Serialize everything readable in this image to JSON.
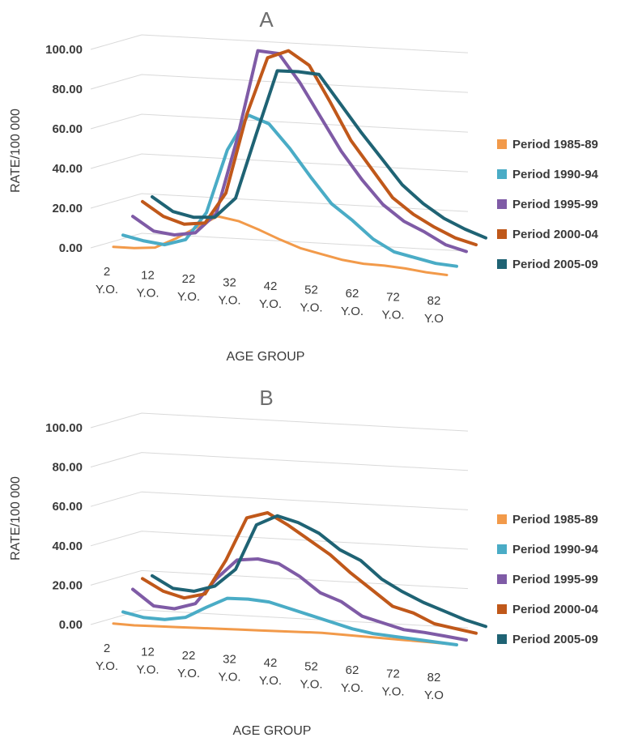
{
  "chart_data": [
    {
      "type": "line",
      "title": "A",
      "xlabel": "AGE GROUP",
      "ylabel": "RATE/100 000",
      "ylim": [
        0,
        100
      ],
      "yticks": [
        "0.00",
        "20.00",
        "40.00",
        "60.00",
        "80.00",
        "100.00"
      ],
      "categories": [
        {
          "line1": "2",
          "line2": "Y.O."
        },
        {
          "line1": "12",
          "line2": "Y.O."
        },
        {
          "line1": "22",
          "line2": "Y.O."
        },
        {
          "line1": "32",
          "line2": "Y.O."
        },
        {
          "line1": "42",
          "line2": "Y.O."
        },
        {
          "line1": "52",
          "line2": "Y.O."
        },
        {
          "line1": "62",
          "line2": "Y.O."
        },
        {
          "line1": "72",
          "line2": "Y.O."
        },
        {
          "line1": "82",
          "line2": "Y.O"
        }
      ],
      "x": [
        2,
        7,
        12,
        17,
        22,
        27,
        32,
        37,
        42,
        47,
        52,
        57,
        62,
        67,
        72,
        77,
        82
      ],
      "grid": true,
      "legend_position": "right",
      "series": [
        {
          "name": "Period 1985-89",
          "color": "#f29a4a",
          "values": [
            0.5,
            0.3,
            1.0,
            6.0,
            12.0,
            18.0,
            16.0,
            12.0,
            7.5,
            3.5,
            1.0,
            -1.5,
            -3.0,
            -3.5,
            -4.5,
            -6.0,
            -7.0
          ]
        },
        {
          "name": "Period 1990-94",
          "color": "#4aacc6",
          "values": [
            5.0,
            2.5,
            1.0,
            4.0,
            18.0,
            50.0,
            68.0,
            64.0,
            52.0,
            38.0,
            25.0,
            17.0,
            8.0,
            2.0,
            -0.5,
            -3.0,
            -4.0
          ]
        },
        {
          "name": "Period 1995-99",
          "color": "#7f5ba6",
          "values": [
            13.0,
            6.0,
            4.5,
            6.0,
            16.0,
            54.0,
            99.0,
            98.0,
            84.0,
            67.0,
            50.0,
            36.0,
            24.0,
            16.0,
            11.0,
            5.0,
            2.0
          ]
        },
        {
          "name": "Period 2000-04",
          "color": "#c0581a",
          "values": [
            19.0,
            12.0,
            8.5,
            9.5,
            25.0,
            65.0,
            94.0,
            98.0,
            91.0,
            73.0,
            54.0,
            40.0,
            26.0,
            18.0,
            12.0,
            7.0,
            4.0
          ]
        },
        {
          "name": "Period 2005-09",
          "color": "#1f6374",
          "values": [
            20.0,
            13.0,
            10.5,
            11.0,
            21.0,
            54.0,
            86.0,
            86.0,
            85.0,
            71.0,
            57.0,
            44.0,
            31.0,
            22.0,
            15.0,
            10.0,
            6.0
          ]
        }
      ]
    },
    {
      "type": "line",
      "title": "B",
      "xlabel": "AGE GROUP",
      "ylabel": "RATE/100 000",
      "ylim": [
        0,
        100
      ],
      "yticks": [
        "0.00",
        "20.00",
        "40.00",
        "60.00",
        "80.00",
        "100.00"
      ],
      "categories": [
        {
          "line1": "2",
          "line2": "Y.O."
        },
        {
          "line1": "12",
          "line2": "Y.O."
        },
        {
          "line1": "22",
          "line2": "Y.O."
        },
        {
          "line1": "32",
          "line2": "Y.O."
        },
        {
          "line1": "42",
          "line2": "Y.O."
        },
        {
          "line1": "52",
          "line2": "Y.O."
        },
        {
          "line1": "62",
          "line2": "Y.O."
        },
        {
          "line1": "72",
          "line2": "Y.O."
        },
        {
          "line1": "82",
          "line2": "Y.O"
        }
      ],
      "x": [
        2,
        7,
        12,
        17,
        22,
        27,
        32,
        37,
        42,
        47,
        52,
        57,
        62,
        67,
        72,
        77,
        82
      ],
      "grid": true,
      "legend_position": "right",
      "series": [
        {
          "name": "Period 1985-89",
          "color": "#f29a4a",
          "values": [
            0.5,
            0.0,
            0.0,
            0.0,
            0.0,
            0.0,
            0.0,
            0.0,
            0.0,
            0.0,
            0.0,
            -0.5,
            -1.0,
            -1.5,
            -2.0,
            -2.5,
            -3.0
          ]
        },
        {
          "name": "Period 1990-94",
          "color": "#4aacc6",
          "values": [
            5.0,
            2.5,
            2.0,
            3.5,
            9.0,
            14.0,
            14.0,
            13.0,
            10.0,
            7.0,
            4.0,
            1.0,
            -1.0,
            -2.0,
            -3.0,
            -4.0,
            -5.0
          ]
        },
        {
          "name": "Period 1995-99",
          "color": "#7f5ba6",
          "values": [
            15.0,
            7.0,
            6.0,
            9.0,
            22.0,
            32.0,
            33.0,
            31.0,
            25.0,
            17.0,
            13.0,
            6.0,
            3.0,
            0.0,
            -1.0,
            -2.5,
            -4.0
          ]
        },
        {
          "name": "Period 2000-04",
          "color": "#c0581a",
          "values": [
            19.0,
            13.0,
            10.0,
            12.5,
            30.0,
            52.0,
            55.0,
            49.0,
            42.0,
            35.0,
            26.0,
            18.0,
            10.0,
            7.0,
            2.0,
            0.0,
            -2.0
          ]
        },
        {
          "name": "Period 2005-09",
          "color": "#1f6374",
          "values": [
            19.0,
            13.0,
            12.0,
            15.0,
            24.0,
            47.0,
            52.0,
            49.0,
            44.0,
            36.0,
            31.0,
            22.0,
            16.0,
            11.0,
            7.0,
            3.0,
            0.0
          ]
        }
      ]
    }
  ]
}
